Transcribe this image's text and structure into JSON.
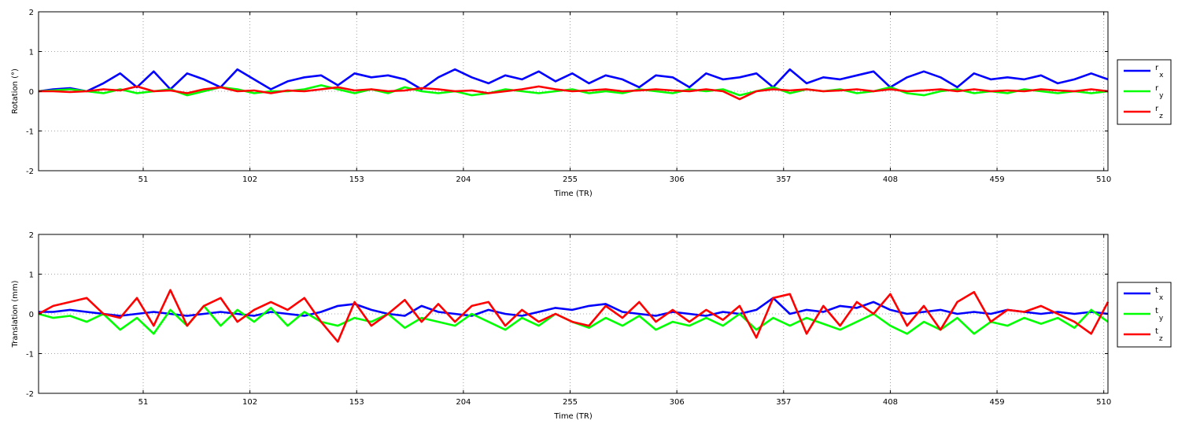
{
  "chart_data": [
    {
      "type": "line",
      "id": "rotation",
      "xlabel": "Time (TR)",
      "ylabel": "Rotation (°)",
      "xlim": [
        1,
        512
      ],
      "ylim": [
        -2,
        2
      ],
      "xticks": [
        51,
        102,
        153,
        204,
        255,
        306,
        357,
        408,
        459,
        510
      ],
      "yticks": [
        -2,
        -1,
        0,
        1,
        2
      ],
      "grid": true,
      "legend_position": "outside-right",
      "x": [
        1,
        8,
        16,
        24,
        32,
        40,
        48,
        56,
        64,
        72,
        80,
        88,
        96,
        104,
        112,
        120,
        128,
        136,
        144,
        152,
        160,
        168,
        176,
        184,
        192,
        200,
        208,
        216,
        224,
        232,
        240,
        248,
        256,
        264,
        272,
        280,
        288,
        296,
        304,
        312,
        320,
        328,
        336,
        344,
        352,
        360,
        368,
        376,
        384,
        392,
        400,
        408,
        416,
        424,
        432,
        440,
        448,
        456,
        464,
        472,
        480,
        488,
        496,
        504,
        512
      ],
      "series": [
        {
          "name": "r",
          "sub": "x",
          "color": "#0000ff",
          "values": [
            0.0,
            0.05,
            0.08,
            0.0,
            0.2,
            0.45,
            0.1,
            0.5,
            0.05,
            0.45,
            0.3,
            0.1,
            0.55,
            0.3,
            0.05,
            0.25,
            0.35,
            0.4,
            0.15,
            0.45,
            0.35,
            0.4,
            0.3,
            0.05,
            0.35,
            0.55,
            0.35,
            0.2,
            0.4,
            0.3,
            0.5,
            0.25,
            0.45,
            0.2,
            0.4,
            0.3,
            0.1,
            0.4,
            0.35,
            0.1,
            0.45,
            0.3,
            0.35,
            0.45,
            0.1,
            0.55,
            0.2,
            0.35,
            0.3,
            0.4,
            0.5,
            0.1,
            0.35,
            0.5,
            0.35,
            0.1,
            0.45,
            0.3,
            0.35,
            0.3,
            0.4,
            0.2,
            0.3,
            0.45,
            0.3
          ]
        },
        {
          "name": "r",
          "sub": "y",
          "color": "#00ff00",
          "values": [
            0.0,
            0.02,
            0.05,
            0.0,
            -0.05,
            0.05,
            -0.05,
            0.0,
            0.05,
            -0.1,
            0.0,
            0.1,
            0.05,
            -0.05,
            0.0,
            0.0,
            0.05,
            0.15,
            0.05,
            -0.05,
            0.05,
            -0.05,
            0.1,
            0.0,
            -0.05,
            0.0,
            -0.1,
            -0.05,
            0.05,
            0.0,
            -0.05,
            0.0,
            0.05,
            -0.05,
            0.0,
            -0.05,
            0.05,
            0.0,
            -0.05,
            0.05,
            0.0,
            0.05,
            -0.1,
            0.0,
            0.1,
            -0.05,
            0.05,
            0.0,
            0.05,
            -0.05,
            0.0,
            0.1,
            -0.05,
            -0.1,
            0.0,
            0.05,
            -0.05,
            0.0,
            -0.05,
            0.05,
            0.0,
            -0.05,
            0.0,
            -0.05,
            0.0
          ]
        },
        {
          "name": "r",
          "sub": "z",
          "color": "#ff0000",
          "values": [
            0.0,
            0.0,
            -0.02,
            0.0,
            0.05,
            0.02,
            0.12,
            0.0,
            0.02,
            -0.05,
            0.05,
            0.1,
            0.0,
            0.02,
            -0.05,
            0.02,
            0.0,
            0.05,
            0.1,
            0.02,
            0.05,
            0.0,
            0.02,
            0.08,
            0.05,
            0.0,
            0.02,
            -0.05,
            0.0,
            0.05,
            0.12,
            0.05,
            0.0,
            0.02,
            0.05,
            0.0,
            0.02,
            0.05,
            0.02,
            0.0,
            0.05,
            0.0,
            -0.2,
            0.0,
            0.05,
            0.02,
            0.05,
            0.0,
            0.02,
            0.05,
            0.0,
            0.05,
            0.0,
            0.02,
            0.05,
            0.0,
            0.05,
            0.0,
            0.02,
            0.0,
            0.05,
            0.02,
            0.0,
            0.05,
            0.0
          ]
        }
      ]
    },
    {
      "type": "line",
      "id": "translation",
      "xlabel": "Time (TR)",
      "ylabel": "Translation (mm)",
      "xlim": [
        1,
        512
      ],
      "ylim": [
        -2,
        2
      ],
      "xticks": [
        51,
        102,
        153,
        204,
        255,
        306,
        357,
        408,
        459,
        510
      ],
      "yticks": [
        -2,
        -1,
        0,
        1,
        2
      ],
      "grid": true,
      "legend_position": "outside-right",
      "x": [
        1,
        8,
        16,
        24,
        32,
        40,
        48,
        56,
        64,
        72,
        80,
        88,
        96,
        104,
        112,
        120,
        128,
        136,
        144,
        152,
        160,
        168,
        176,
        184,
        192,
        200,
        208,
        216,
        224,
        232,
        240,
        248,
        256,
        264,
        272,
        280,
        288,
        296,
        304,
        312,
        320,
        328,
        336,
        344,
        352,
        360,
        368,
        376,
        384,
        392,
        400,
        408,
        416,
        424,
        432,
        440,
        448,
        456,
        464,
        472,
        480,
        488,
        496,
        504,
        512
      ],
      "series": [
        {
          "name": "t",
          "sub": "x",
          "color": "#0000ff",
          "values": [
            0.05,
            0.05,
            0.1,
            0.05,
            0.0,
            -0.05,
            0.0,
            0.05,
            0.0,
            -0.05,
            0.0,
            0.05,
            0.0,
            -0.05,
            0.05,
            0.0,
            -0.05,
            0.05,
            0.2,
            0.25,
            0.1,
            0.0,
            -0.05,
            0.2,
            0.05,
            0.0,
            -0.05,
            0.1,
            0.0,
            -0.05,
            0.05,
            0.15,
            0.1,
            0.2,
            0.25,
            0.05,
            0.0,
            -0.05,
            0.05,
            0.0,
            -0.05,
            0.05,
            0.0,
            0.1,
            0.4,
            0.0,
            0.1,
            0.05,
            0.2,
            0.15,
            0.3,
            0.1,
            0.0,
            0.05,
            0.1,
            0.0,
            0.05,
            0.0,
            0.1,
            0.05,
            0.0,
            0.05,
            0.0,
            0.05,
            0.0
          ]
        },
        {
          "name": "t",
          "sub": "y",
          "color": "#00ff00",
          "values": [
            0.0,
            -0.1,
            -0.05,
            -0.2,
            0.0,
            -0.4,
            -0.1,
            -0.5,
            0.1,
            -0.3,
            0.2,
            -0.3,
            0.1,
            -0.2,
            0.15,
            -0.3,
            0.05,
            -0.2,
            -0.3,
            -0.1,
            -0.2,
            0.0,
            -0.35,
            -0.1,
            -0.2,
            -0.3,
            0.0,
            -0.2,
            -0.4,
            -0.1,
            -0.3,
            0.0,
            -0.2,
            -0.35,
            -0.1,
            -0.3,
            -0.05,
            -0.4,
            -0.2,
            -0.3,
            -0.1,
            -0.3,
            0.0,
            -0.4,
            -0.1,
            -0.3,
            -0.1,
            -0.25,
            -0.4,
            -0.2,
            0.0,
            -0.3,
            -0.5,
            -0.2,
            -0.4,
            -0.1,
            -0.5,
            -0.2,
            -0.3,
            -0.1,
            -0.25,
            -0.1,
            -0.35,
            0.1,
            -0.2
          ]
        },
        {
          "name": "t",
          "sub": "z",
          "color": "#ff0000",
          "values": [
            0.0,
            0.2,
            0.3,
            0.4,
            0.0,
            -0.1,
            0.4,
            -0.3,
            0.6,
            -0.3,
            0.2,
            0.4,
            -0.2,
            0.1,
            0.3,
            0.1,
            0.4,
            -0.2,
            -0.7,
            0.3,
            -0.3,
            0.0,
            0.35,
            -0.2,
            0.25,
            -0.2,
            0.2,
            0.3,
            -0.3,
            0.1,
            -0.2,
            0.0,
            -0.2,
            -0.3,
            0.2,
            -0.1,
            0.3,
            -0.2,
            0.1,
            -0.2,
            0.1,
            -0.15,
            0.2,
            -0.6,
            0.4,
            0.5,
            -0.5,
            0.2,
            -0.3,
            0.3,
            0.0,
            0.5,
            -0.3,
            0.2,
            -0.4,
            0.3,
            0.55,
            -0.2,
            0.1,
            0.05,
            0.2,
            0.0,
            -0.2,
            -0.5,
            0.3
          ]
        }
      ]
    }
  ]
}
